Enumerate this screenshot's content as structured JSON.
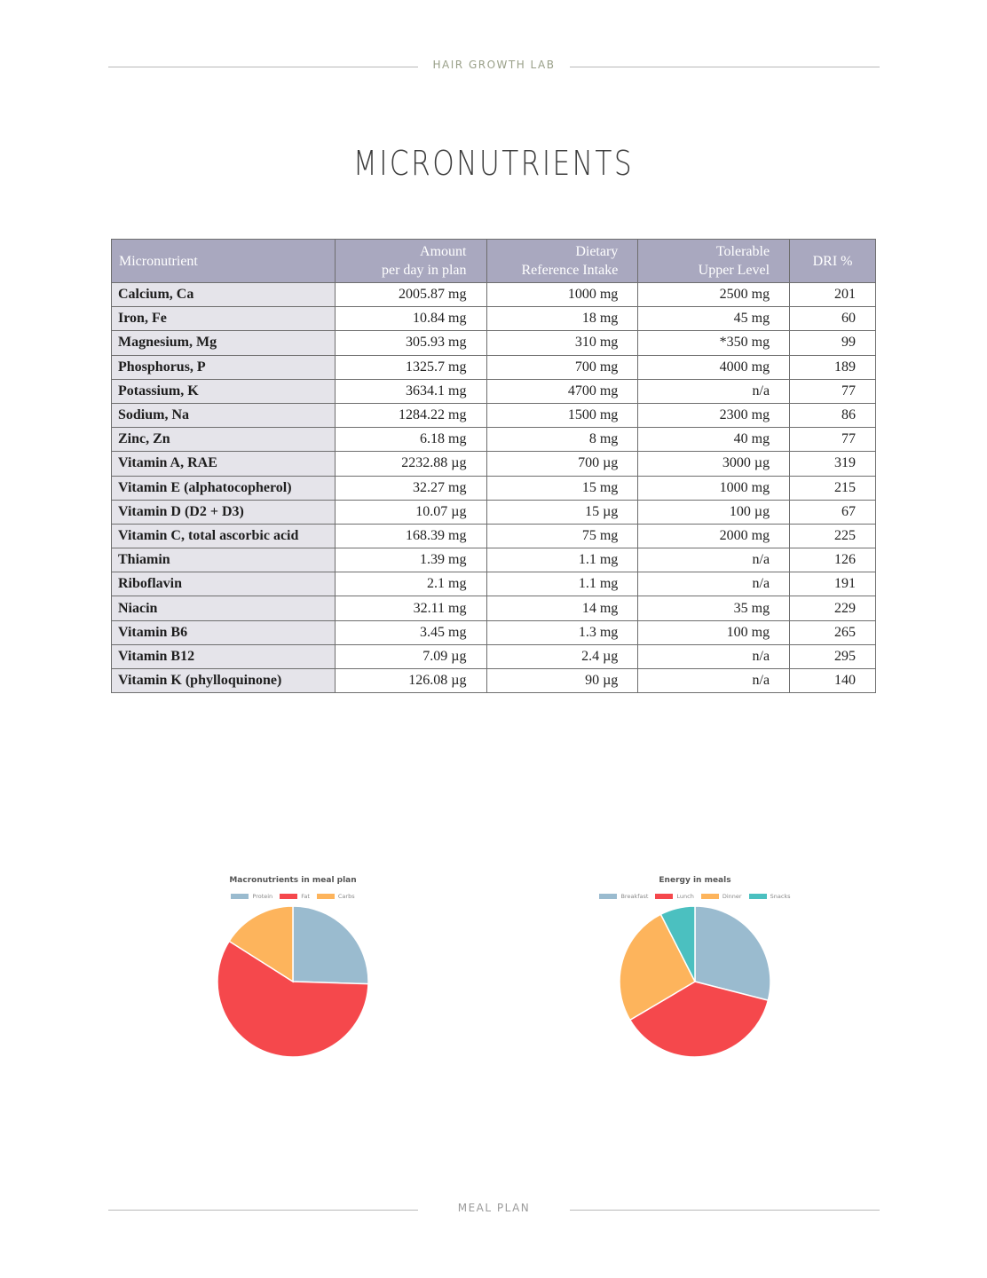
{
  "header": {
    "brand": "HAIR GROWTH LAB"
  },
  "page_title": "MICRONUTRIENTS",
  "table": {
    "headers": {
      "micronutrient": "Micronutrient",
      "amount_line1": "Amount",
      "amount_line2": "per day in plan",
      "dri_line1": "Dietary",
      "dri_line2": "Reference Intake",
      "ul_line1": "Tolerable",
      "ul_line2": "Upper Level",
      "dri_pct": "DRI %"
    },
    "rows": [
      {
        "name": "Calcium, Ca",
        "amount": "2005.87 mg",
        "dri": "1000 mg",
        "ul": "2500 mg",
        "pct": "201"
      },
      {
        "name": "Iron, Fe",
        "amount": "10.84 mg",
        "dri": "18 mg",
        "ul": "45 mg",
        "pct": "60"
      },
      {
        "name": "Magnesium, Mg",
        "amount": "305.93 mg",
        "dri": "310 mg",
        "ul": "*350 mg",
        "pct": "99"
      },
      {
        "name": "Phosphorus, P",
        "amount": "1325.7 mg",
        "dri": "700 mg",
        "ul": "4000 mg",
        "pct": "189"
      },
      {
        "name": "Potassium, K",
        "amount": "3634.1 mg",
        "dri": "4700 mg",
        "ul": "n/a",
        "pct": "77"
      },
      {
        "name": "Sodium, Na",
        "amount": "1284.22 mg",
        "dri": "1500 mg",
        "ul": "2300 mg",
        "pct": "86"
      },
      {
        "name": "Zinc, Zn",
        "amount": "6.18 mg",
        "dri": "8 mg",
        "ul": "40 mg",
        "pct": "77"
      },
      {
        "name": "Vitamin A, RAE",
        "amount": "2232.88 µg",
        "dri": "700 µg",
        "ul": "3000 µg",
        "pct": "319"
      },
      {
        "name": "Vitamin E (alphatocopherol)",
        "amount": "32.27 mg",
        "dri": "15 mg",
        "ul": "1000 mg",
        "pct": "215"
      },
      {
        "name": "Vitamin D (D2 + D3)",
        "amount": "10.07 µg",
        "dri": "15 µg",
        "ul": "100 µg",
        "pct": "67"
      },
      {
        "name": "Vitamin C, total ascorbic acid",
        "amount": "168.39 mg",
        "dri": "75 mg",
        "ul": "2000 mg",
        "pct": "225"
      },
      {
        "name": "Thiamin",
        "amount": "1.39 mg",
        "dri": "1.1 mg",
        "ul": "n/a",
        "pct": "126"
      },
      {
        "name": "Riboflavin",
        "amount": "2.1 mg",
        "dri": "1.1 mg",
        "ul": "n/a",
        "pct": "191"
      },
      {
        "name": "Niacin",
        "amount": "32.11 mg",
        "dri": "14 mg",
        "ul": "35 mg",
        "pct": "229"
      },
      {
        "name": "Vitamin B6",
        "amount": "3.45 mg",
        "dri": "1.3 mg",
        "ul": "100 mg",
        "pct": "265"
      },
      {
        "name": "Vitamin B12",
        "amount": "7.09 µg",
        "dri": "2.4 µg",
        "ul": "n/a",
        "pct": "295"
      },
      {
        "name": "Vitamin K (phylloquinone)",
        "amount": "126.08 µg",
        "dri": "90 µg",
        "ul": "n/a",
        "pct": "140"
      }
    ]
  },
  "chart_data": [
    {
      "type": "pie",
      "title": "Macronutrients in meal plan",
      "legend_position": "top",
      "categories": [
        "Protein",
        "Fat",
        "Carbs"
      ],
      "values": [
        25.5,
        58.5,
        16
      ],
      "colors": [
        "#9abbcf",
        "#f5484c",
        "#fdb45c"
      ]
    },
    {
      "type": "pie",
      "title": "Energy in meals",
      "legend_position": "top",
      "categories": [
        "Breakfast",
        "Lunch",
        "Dinner",
        "Snacks"
      ],
      "values": [
        29,
        37.5,
        26,
        7.5
      ],
      "colors": [
        "#9abbcf",
        "#f5484c",
        "#fdb45c",
        "#4bc0c0"
      ]
    }
  ],
  "footer": {
    "label": "MEAL PLAN"
  }
}
